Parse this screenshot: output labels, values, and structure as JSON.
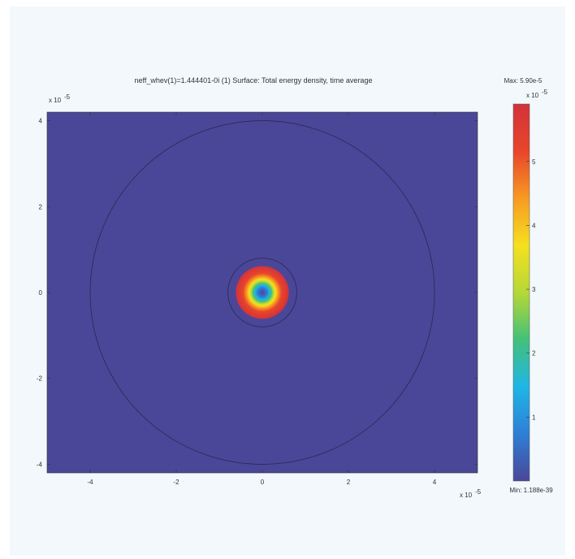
{
  "chart_data": {
    "type": "heatmap",
    "title": "neff_whev(1)=1.444401-0i (1)   Surface: Total energy density, time average",
    "x_exponent_label": "x 10",
    "x_exponent": "-5",
    "y_exponent_label": "x 10",
    "y_exponent": "-5",
    "xlim": [
      -5,
      5
    ],
    "ylim": [
      -4.2,
      4.2
    ],
    "x_ticks": [
      -4,
      -2,
      0,
      2,
      4
    ],
    "y_ticks": [
      4,
      2,
      0,
      -2,
      -4
    ],
    "tick_labels_x": [
      "-4",
      "-2",
      "0",
      "2",
      "4"
    ],
    "tick_labels_y": [
      "4",
      "2",
      "0",
      "-2",
      "-4"
    ],
    "boundaries": [
      {
        "name": "outer-cladding",
        "center": [
          0,
          0
        ],
        "radius": 4.0
      },
      {
        "name": "core-ring",
        "center": [
          0,
          0
        ],
        "radius": 0.8
      }
    ],
    "field": {
      "center": [
        0,
        0
      ],
      "peak": 5.9,
      "sigma": 0.22,
      "background_color": "#4a4798"
    },
    "colorbar": {
      "max_label": "Max: 5.90e-5",
      "min_label": "Min: 1.188e-39",
      "exponent_label": "x 10",
      "exponent": "-5",
      "range": [
        0,
        5.9
      ],
      "ticks": [
        1,
        2,
        3,
        4,
        5
      ],
      "tick_labels": [
        "1",
        "2",
        "3",
        "4",
        "5"
      ],
      "colors": [
        "#4a4798",
        "#2e7fd6",
        "#1fb6e6",
        "#43c07a",
        "#b6d836",
        "#f5e020",
        "#f79a22",
        "#e8452b",
        "#d2323a"
      ]
    }
  }
}
